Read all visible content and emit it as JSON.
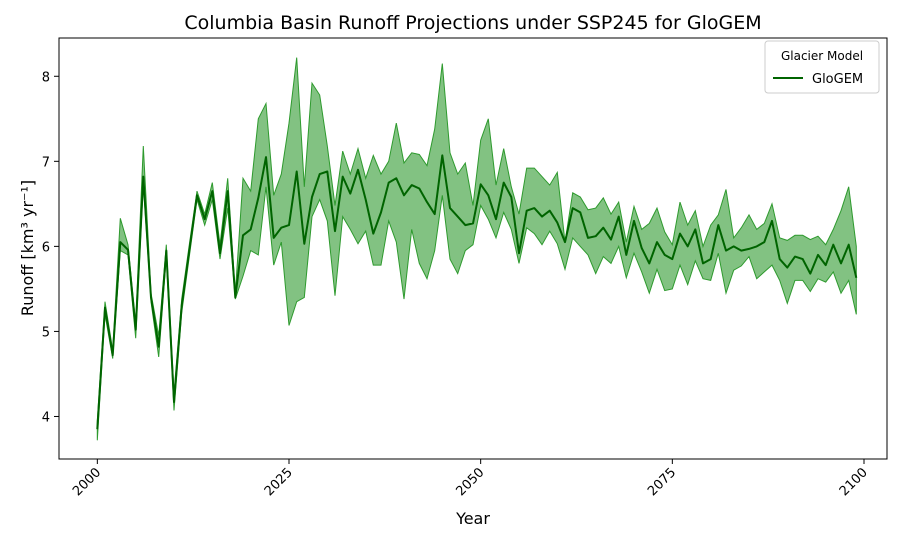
{
  "chart_data": {
    "type": "line",
    "title": "Columbia Basin Runoff Projections under SSP245 for GloGEM",
    "xlabel": "Year",
    "ylabel": "Runoff [km³ yr⁻¹]",
    "xlim": [
      1995,
      2103
    ],
    "ylim": [
      3.5,
      8.45
    ],
    "x_ticks": [
      2000,
      2025,
      2050,
      2075,
      2100
    ],
    "y_ticks": [
      4,
      5,
      6,
      7,
      8
    ],
    "grid": false,
    "legend": {
      "title": "Glacier Model",
      "position": "top-right",
      "entries": [
        "GloGEM"
      ]
    },
    "colors": {
      "line": "#006400",
      "band": "#2E9A2E",
      "band_opacity": 0.6
    },
    "x": [
      2000,
      2001,
      2002,
      2003,
      2004,
      2005,
      2006,
      2007,
      2008,
      2009,
      2010,
      2011,
      2012,
      2013,
      2014,
      2015,
      2016,
      2017,
      2018,
      2019,
      2020,
      2021,
      2022,
      2023,
      2024,
      2025,
      2026,
      2027,
      2028,
      2029,
      2030,
      2031,
      2032,
      2033,
      2034,
      2035,
      2036,
      2037,
      2038,
      2039,
      2040,
      2041,
      2042,
      2043,
      2044,
      2045,
      2046,
      2047,
      2048,
      2049,
      2050,
      2051,
      2052,
      2053,
      2054,
      2055,
      2056,
      2057,
      2058,
      2059,
      2060,
      2061,
      2062,
      2063,
      2064,
      2065,
      2066,
      2067,
      2068,
      2069,
      2070,
      2071,
      2072,
      2073,
      2074,
      2075,
      2076,
      2077,
      2078,
      2079,
      2080,
      2081,
      2082,
      2083,
      2084,
      2085,
      2086,
      2087,
      2088,
      2089,
      2090,
      2091,
      2092,
      2093,
      2094,
      2095,
      2096,
      2097,
      2098,
      2099
    ],
    "series": [
      {
        "name": "GloGEM",
        "mean": [
          3.85,
          5.28,
          4.72,
          6.05,
          5.96,
          5.02,
          6.82,
          5.4,
          4.82,
          5.95,
          4.17,
          5.3,
          5.95,
          6.6,
          6.32,
          6.65,
          5.92,
          6.65,
          5.4,
          6.13,
          6.2,
          6.57,
          7.05,
          6.1,
          6.22,
          6.25,
          6.88,
          6.03,
          6.58,
          6.85,
          6.88,
          6.18,
          6.82,
          6.62,
          6.9,
          6.55,
          6.15,
          6.4,
          6.75,
          6.8,
          6.6,
          6.72,
          6.68,
          6.52,
          6.38,
          7.07,
          6.45,
          6.35,
          6.25,
          6.27,
          6.73,
          6.6,
          6.32,
          6.75,
          6.58,
          5.92,
          6.42,
          6.45,
          6.35,
          6.42,
          6.28,
          6.05,
          6.45,
          6.4,
          6.1,
          6.12,
          6.22,
          6.08,
          6.35,
          5.9,
          6.3,
          5.98,
          5.8,
          6.05,
          5.9,
          5.85,
          6.15,
          6.0,
          6.2,
          5.8,
          5.85,
          6.25,
          5.95,
          6.0,
          5.95,
          5.97,
          6.0,
          6.05,
          6.3,
          5.85,
          5.75,
          5.88,
          5.85,
          5.68,
          5.9,
          5.78,
          6.02,
          5.8,
          6.02,
          5.63
        ],
        "lower": [
          3.72,
          5.2,
          4.68,
          5.95,
          5.9,
          4.92,
          6.75,
          5.35,
          4.7,
          5.88,
          4.07,
          5.22,
          5.88,
          6.55,
          6.25,
          6.55,
          5.85,
          6.45,
          5.38,
          5.65,
          5.95,
          5.9,
          6.7,
          5.78,
          6.05,
          5.07,
          5.35,
          5.4,
          6.35,
          6.55,
          6.3,
          5.42,
          6.35,
          6.2,
          6.03,
          6.18,
          5.78,
          5.78,
          6.3,
          6.05,
          5.38,
          6.2,
          5.8,
          5.62,
          5.95,
          6.6,
          5.85,
          5.68,
          5.95,
          6.02,
          6.48,
          6.32,
          6.1,
          6.4,
          6.2,
          5.8,
          6.22,
          6.15,
          6.02,
          6.18,
          6.03,
          5.73,
          6.1,
          6.0,
          5.9,
          5.68,
          5.88,
          5.8,
          6.0,
          5.63,
          5.92,
          5.7,
          5.45,
          5.73,
          5.48,
          5.5,
          5.78,
          5.55,
          5.83,
          5.62,
          5.6,
          5.92,
          5.45,
          5.72,
          5.77,
          5.88,
          5.62,
          5.7,
          5.78,
          5.6,
          5.33,
          5.6,
          5.6,
          5.47,
          5.62,
          5.58,
          5.7,
          5.45,
          5.6,
          5.2
        ],
        "upper": [
          3.95,
          5.35,
          4.78,
          6.33,
          6.02,
          5.1,
          7.18,
          5.45,
          4.95,
          6.02,
          4.28,
          5.38,
          6.02,
          6.65,
          6.38,
          6.75,
          6.02,
          6.8,
          5.45,
          6.8,
          6.65,
          7.5,
          7.68,
          6.6,
          6.85,
          7.45,
          8.22,
          6.7,
          7.92,
          7.78,
          7.18,
          6.48,
          7.12,
          6.85,
          7.15,
          6.8,
          7.07,
          6.85,
          7.0,
          7.45,
          6.98,
          7.1,
          7.08,
          6.95,
          7.38,
          8.15,
          7.1,
          6.85,
          6.98,
          6.48,
          7.25,
          7.5,
          6.72,
          7.15,
          6.7,
          6.38,
          6.92,
          6.92,
          6.82,
          6.72,
          6.87,
          6.05,
          6.63,
          6.58,
          6.43,
          6.45,
          6.57,
          6.38,
          6.52,
          6.05,
          6.47,
          6.2,
          6.27,
          6.45,
          6.17,
          6.02,
          6.52,
          6.25,
          6.42,
          6.0,
          6.25,
          6.37,
          6.67,
          6.1,
          6.22,
          6.37,
          6.2,
          6.27,
          6.5,
          6.1,
          6.07,
          6.13,
          6.13,
          6.08,
          6.12,
          6.02,
          6.2,
          6.42,
          6.7,
          6.0
        ]
      }
    ]
  }
}
